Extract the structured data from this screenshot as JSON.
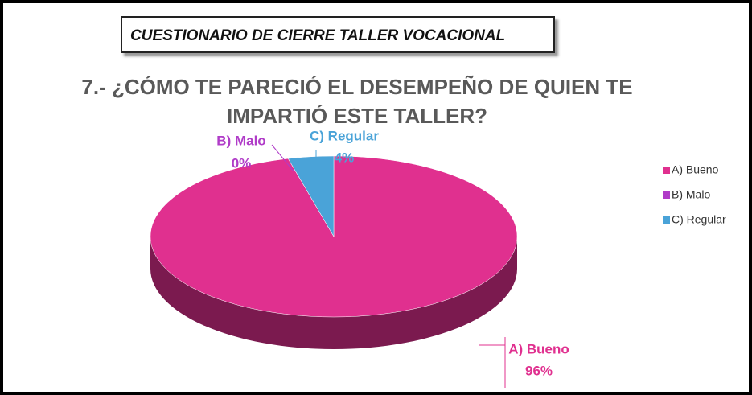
{
  "chart_data": {
    "type": "pie",
    "header": "CUESTIONARIO DE CIERRE TALLER VOCACIONAL",
    "title": "7.- ¿CÓMO TE PARECIÓ EL DESEMPEÑO DE QUIEN TE IMPARTIÓ ESTE TALLER?",
    "categories": [
      "A) Bueno",
      "B) Malo",
      "C) Regular"
    ],
    "values": [
      96,
      0,
      4
    ],
    "value_labels": [
      "96%",
      "0%",
      "4%"
    ],
    "colors": [
      "#e0308f",
      "#b03cc8",
      "#4aa3d8"
    ],
    "legend": "right"
  }
}
